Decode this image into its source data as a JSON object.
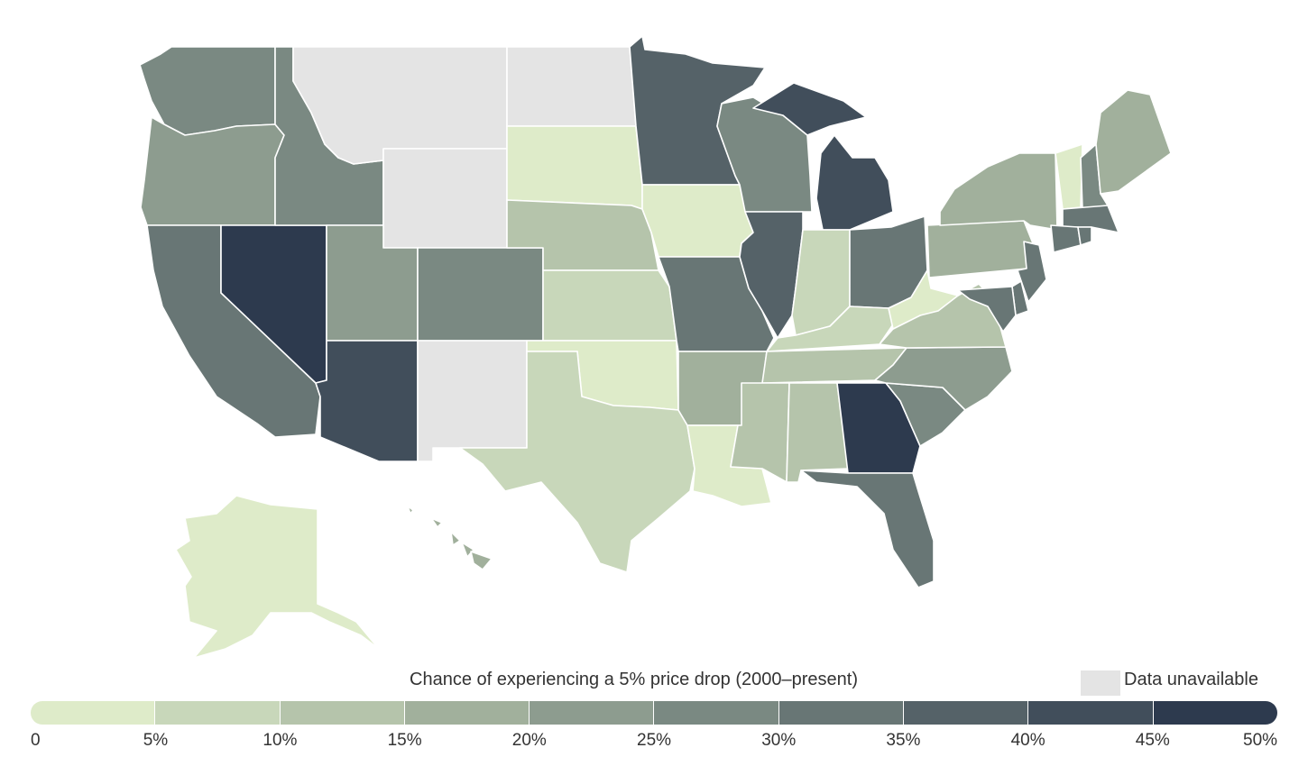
{
  "legend": {
    "title": "Chance of experiencing a 5% price drop (2000–present)",
    "unavailable_label": "Data unavailable",
    "unavailable_color": "#e4e4e4",
    "colors": [
      "#deebc9",
      "#c8d7ba",
      "#b5c4ab",
      "#a1b09c",
      "#8d9c8f",
      "#7a8982",
      "#687675",
      "#556268",
      "#414e5b",
      "#2d3a4e"
    ],
    "ticks": [
      "0",
      "5%",
      "10%",
      "15%",
      "20%",
      "25%",
      "30%",
      "35%",
      "40%",
      "45%",
      "50%"
    ]
  },
  "states": [
    {
      "name": "Washington",
      "bin": 5
    },
    {
      "name": "Oregon",
      "bin": 4
    },
    {
      "name": "California",
      "bin": 6
    },
    {
      "name": "Nevada",
      "bin": 9
    },
    {
      "name": "Idaho",
      "bin": 5
    },
    {
      "name": "Montana",
      "bin": null
    },
    {
      "name": "Wyoming",
      "bin": null
    },
    {
      "name": "Utah",
      "bin": 4
    },
    {
      "name": "Arizona",
      "bin": 8
    },
    {
      "name": "Colorado",
      "bin": 5
    },
    {
      "name": "New Mexico",
      "bin": null
    },
    {
      "name": "North Dakota",
      "bin": null
    },
    {
      "name": "South Dakota",
      "bin": 0
    },
    {
      "name": "Nebraska",
      "bin": 2
    },
    {
      "name": "Kansas",
      "bin": 1
    },
    {
      "name": "Oklahoma",
      "bin": 0
    },
    {
      "name": "Texas",
      "bin": 1
    },
    {
      "name": "Minnesota",
      "bin": 7
    },
    {
      "name": "Iowa",
      "bin": 0
    },
    {
      "name": "Missouri",
      "bin": 6
    },
    {
      "name": "Arkansas",
      "bin": 3
    },
    {
      "name": "Louisiana",
      "bin": 0
    },
    {
      "name": "Wisconsin",
      "bin": 5
    },
    {
      "name": "Illinois",
      "bin": 7
    },
    {
      "name": "Michigan",
      "bin": 8
    },
    {
      "name": "Indiana",
      "bin": 1
    },
    {
      "name": "Ohio",
      "bin": 6
    },
    {
      "name": "Kentucky",
      "bin": 1
    },
    {
      "name": "Tennessee",
      "bin": 2
    },
    {
      "name": "Mississippi",
      "bin": 2
    },
    {
      "name": "Alabama",
      "bin": 2
    },
    {
      "name": "Georgia",
      "bin": 9
    },
    {
      "name": "Florida",
      "bin": 6
    },
    {
      "name": "South Carolina",
      "bin": 5
    },
    {
      "name": "North Carolina",
      "bin": 4
    },
    {
      "name": "Virginia",
      "bin": 2
    },
    {
      "name": "West Virginia",
      "bin": 0
    },
    {
      "name": "Pennsylvania",
      "bin": 3
    },
    {
      "name": "New York",
      "bin": 3
    },
    {
      "name": "Vermont",
      "bin": 0
    },
    {
      "name": "New Hampshire",
      "bin": 5
    },
    {
      "name": "Maine",
      "bin": 3
    },
    {
      "name": "Massachusetts",
      "bin": 6
    },
    {
      "name": "Connecticut",
      "bin": 6
    },
    {
      "name": "Rhode Island",
      "bin": 6
    },
    {
      "name": "New Jersey",
      "bin": 6
    },
    {
      "name": "Delaware",
      "bin": 6
    },
    {
      "name": "Maryland",
      "bin": 6
    },
    {
      "name": "Alaska",
      "bin": 0
    },
    {
      "name": "Hawaii",
      "bin": 3
    }
  ]
}
